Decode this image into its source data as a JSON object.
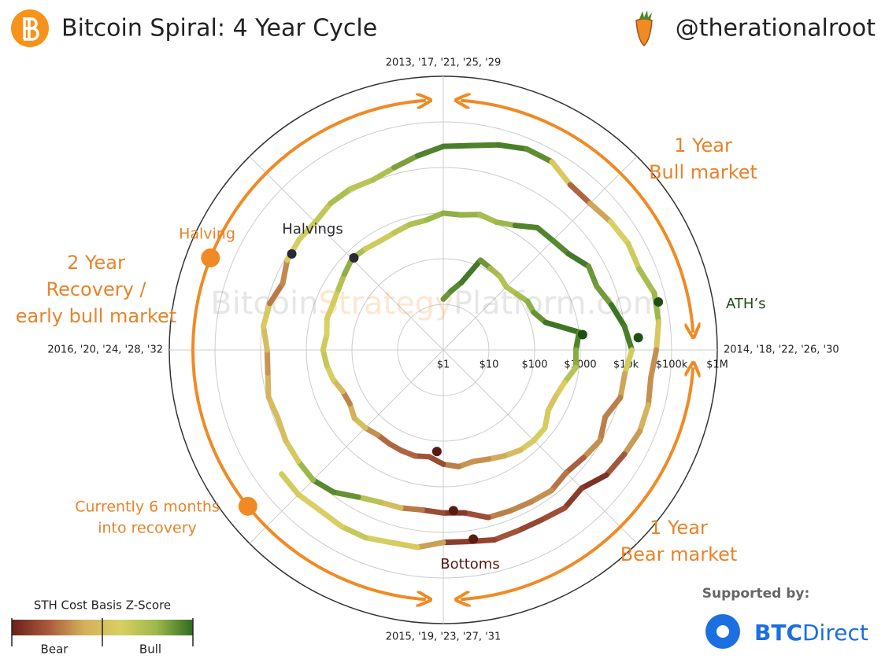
{
  "header": {
    "title": "Bitcoin Spiral: 4 Year Cycle",
    "handle": "@therationalroot"
  },
  "chart_data": {
    "type": "spiral",
    "period": 4,
    "log": true,
    "xticks": [
      {
        "value": 2013,
        "label": "2013, '17, '21, '25, '29"
      },
      {
        "value": 2014,
        "label": "2014, '18, '22, '26, '30"
      },
      {
        "value": 2015,
        "label": "2015, '19, '23, '27, '31"
      },
      {
        "value": 2016,
        "label": "2016, '20, '24, '28, '32"
      }
    ],
    "ylim": [
      1,
      1000000
    ],
    "yticks": [
      {
        "value": 1,
        "label": "$1"
      },
      {
        "value": 10,
        "label": "$10"
      },
      {
        "value": 100,
        "label": "$100"
      },
      {
        "value": 1000,
        "label": "$1000"
      },
      {
        "value": 10000,
        "label": "$10k"
      },
      {
        "value": 100000,
        "label": "$100k"
      },
      {
        "value": 1000000,
        "label": "$1M"
      }
    ],
    "watermark": [
      "Bitcoin",
      "Strategy",
      "Platform.com"
    ],
    "x": [
      2013.0,
      2013.083,
      2013.167,
      2013.25,
      2013.333,
      2013.417,
      2013.5,
      2013.583,
      2013.667,
      2013.75,
      2013.833,
      2013.917,
      2014.0,
      2014.083,
      2014.167,
      2014.25,
      2014.333,
      2014.417,
      2014.5,
      2014.583,
      2014.667,
      2014.75,
      2014.833,
      2014.917,
      2015.0,
      2015.083,
      2015.167,
      2015.25,
      2015.333,
      2015.417,
      2015.5,
      2015.583,
      2015.667,
      2015.75,
      2015.833,
      2015.917,
      2016.0,
      2016.083,
      2016.167,
      2016.25,
      2016.333,
      2016.417,
      2016.5,
      2016.583,
      2016.667,
      2016.75,
      2016.833,
      2016.917,
      2017.0,
      2017.083,
      2017.167,
      2017.25,
      2017.333,
      2017.417,
      2017.5,
      2017.583,
      2017.667,
      2017.75,
      2017.833,
      2017.917,
      2018.0,
      2018.083,
      2018.167,
      2018.25,
      2018.333,
      2018.417,
      2018.5,
      2018.583,
      2018.667,
      2018.75,
      2018.833,
      2018.917,
      2019.0,
      2019.083,
      2019.167,
      2019.25,
      2019.333,
      2019.417,
      2019.5,
      2019.583,
      2019.667,
      2019.75,
      2019.833,
      2019.917,
      2020.0,
      2020.083,
      2020.167,
      2020.25,
      2020.333,
      2020.417,
      2020.5,
      2020.583,
      2020.667,
      2020.75,
      2020.833,
      2020.917,
      2021.0,
      2021.083,
      2021.167,
      2021.25,
      2021.333,
      2021.417,
      2021.5,
      2021.583,
      2021.667,
      2021.75,
      2021.833,
      2021.917,
      2022.0,
      2022.083,
      2022.167,
      2022.25,
      2022.333,
      2022.417,
      2022.5,
      2022.583,
      2022.667,
      2022.75,
      2022.833,
      2022.917,
      2023.0,
      2023.083,
      2023.167,
      2023.25,
      2023.333,
      2023.417,
      2023.5,
      2023.583
    ],
    "values": [
      13,
      20,
      34,
      135,
      117,
      108,
      90,
      105,
      135,
      140,
      210,
      1000,
      800,
      850,
      560,
      460,
      450,
      640,
      640,
      590,
      480,
      390,
      340,
      380,
      320,
      230,
      255,
      245,
      235,
      225,
      260,
      285,
      230,
      240,
      315,
      375,
      430,
      375,
      435,
      415,
      450,
      535,
      675,
      625,
      575,
      610,
      700,
      745,
      1000,
      970,
      1190,
      1080,
      1420,
      2400,
      2480,
      2870,
      4700,
      4340,
      6450,
      10000,
      13500,
      10200,
      10400,
      6900,
      9250,
      7500,
      6400,
      7700,
      7000,
      6600,
      6350,
      4000,
      3750,
      3450,
      3850,
      4100,
      5300,
      8600,
      10800,
      10100,
      9600,
      8300,
      9200,
      7500,
      7200,
      9400,
      8600,
      6400,
      8800,
      9500,
      9200,
      11300,
      11900,
      10800,
      13800,
      19700,
      29000,
      33100,
      45200,
      58800,
      57800,
      36700,
      35000,
      41500,
      47100,
      43800,
      61300,
      57000,
      46300,
      38500,
      44400,
      45500,
      37700,
      31800,
      19300,
      23300,
      20050,
      19400,
      20500,
      17200,
      16600,
      23100,
      23600,
      28500,
      29200,
      27200,
      30500,
      29200
    ],
    "z": [
      1.5,
      1.6,
      1.8,
      1.9,
      1.2,
      1.0,
      0.8,
      1.0,
      1.2,
      1.4,
      1.8,
      2.0,
      1.5,
      1.2,
      0.5,
      0.2,
      0.0,
      0.5,
      0.4,
      0.1,
      -0.3,
      -0.6,
      -0.8,
      -0.5,
      -1.2,
      -1.6,
      -1.0,
      -1.2,
      -1.0,
      -1.1,
      -0.3,
      0.2,
      -1.0,
      -0.6,
      0.3,
      0.6,
      0.8,
      0.3,
      0.5,
      0.4,
      0.6,
      1.2,
      1.4,
      0.6,
      0.5,
      0.6,
      0.9,
      1.0,
      1.4,
      1.2,
      1.3,
      0.8,
      1.6,
      1.9,
      1.6,
      1.8,
      1.9,
      1.2,
      1.8,
      2.0,
      1.6,
      -0.6,
      -0.4,
      -1.3,
      -0.4,
      -1.0,
      -1.3,
      -0.6,
      -0.8,
      -0.8,
      -0.9,
      -1.8,
      -1.5,
      -1.3,
      -0.5,
      0.3,
      1.4,
      1.8,
      1.6,
      0.8,
      0.2,
      -0.3,
      0.1,
      -0.7,
      -0.6,
      0.5,
      0.0,
      -1.8,
      0.3,
      0.6,
      0.4,
      1.0,
      1.0,
      0.6,
      1.3,
      1.6,
      1.9,
      1.7,
      1.8,
      1.8,
      1.5,
      -1.0,
      -1.2,
      0.2,
      0.6,
      0.5,
      1.6,
      0.8,
      -0.4,
      -1.0,
      -0.4,
      -0.2,
      -1.0,
      -1.5,
      -2.0,
      -1.2,
      -1.5,
      -1.4,
      -1.2,
      -1.8,
      -1.4,
      0.3,
      0.2,
      0.7,
      0.6,
      0.2,
      0.6,
      0.4
    ],
    "zlim": [
      -2,
      2
    ],
    "colorscale": [
      "#6b1f1a",
      "#a85a3c",
      "#d4b05c",
      "#d9cf62",
      "#9db84a",
      "#2f6b1f"
    ],
    "colorbar": {
      "title": "STH Cost Basis Z-Score",
      "labels": [
        "Bear",
        "Bull"
      ]
    },
    "points": [
      {
        "label": "Halvings",
        "color": "#2a2a35",
        "x": [
          2016.51,
          2020.36
        ],
        "values": [
          650,
          8500
        ]
      },
      {
        "label": "ATH’s",
        "color": "#1f4d15",
        "x": [
          2013.93,
          2017.96,
          2021.86
        ],
        "values": [
          1170,
          19000,
          67000
        ]
      },
      {
        "label": "Bottoms",
        "color": "#5a1a12",
        "x": [
          2015.04,
          2018.96,
          2022.9
        ],
        "values": [
          170,
          3400,
          15800
        ]
      }
    ],
    "phases": [
      {
        "lines": [
          "1 Year",
          "Bull market"
        ]
      },
      {
        "lines": [
          "1 Year",
          "Bear market"
        ]
      },
      {
        "lines": [
          "2 Year",
          "Recovery /",
          "early bull market"
        ]
      }
    ],
    "markers": [
      {
        "lines": [
          "Halving"
        ],
        "x": 2024.24
      },
      {
        "lines": [
          "Currently 6 months",
          "into recovery"
        ],
        "x": 2023.57
      }
    ]
  },
  "footer": {
    "supported": "Supported by:",
    "brand": [
      "BTC",
      "Direct"
    ]
  }
}
